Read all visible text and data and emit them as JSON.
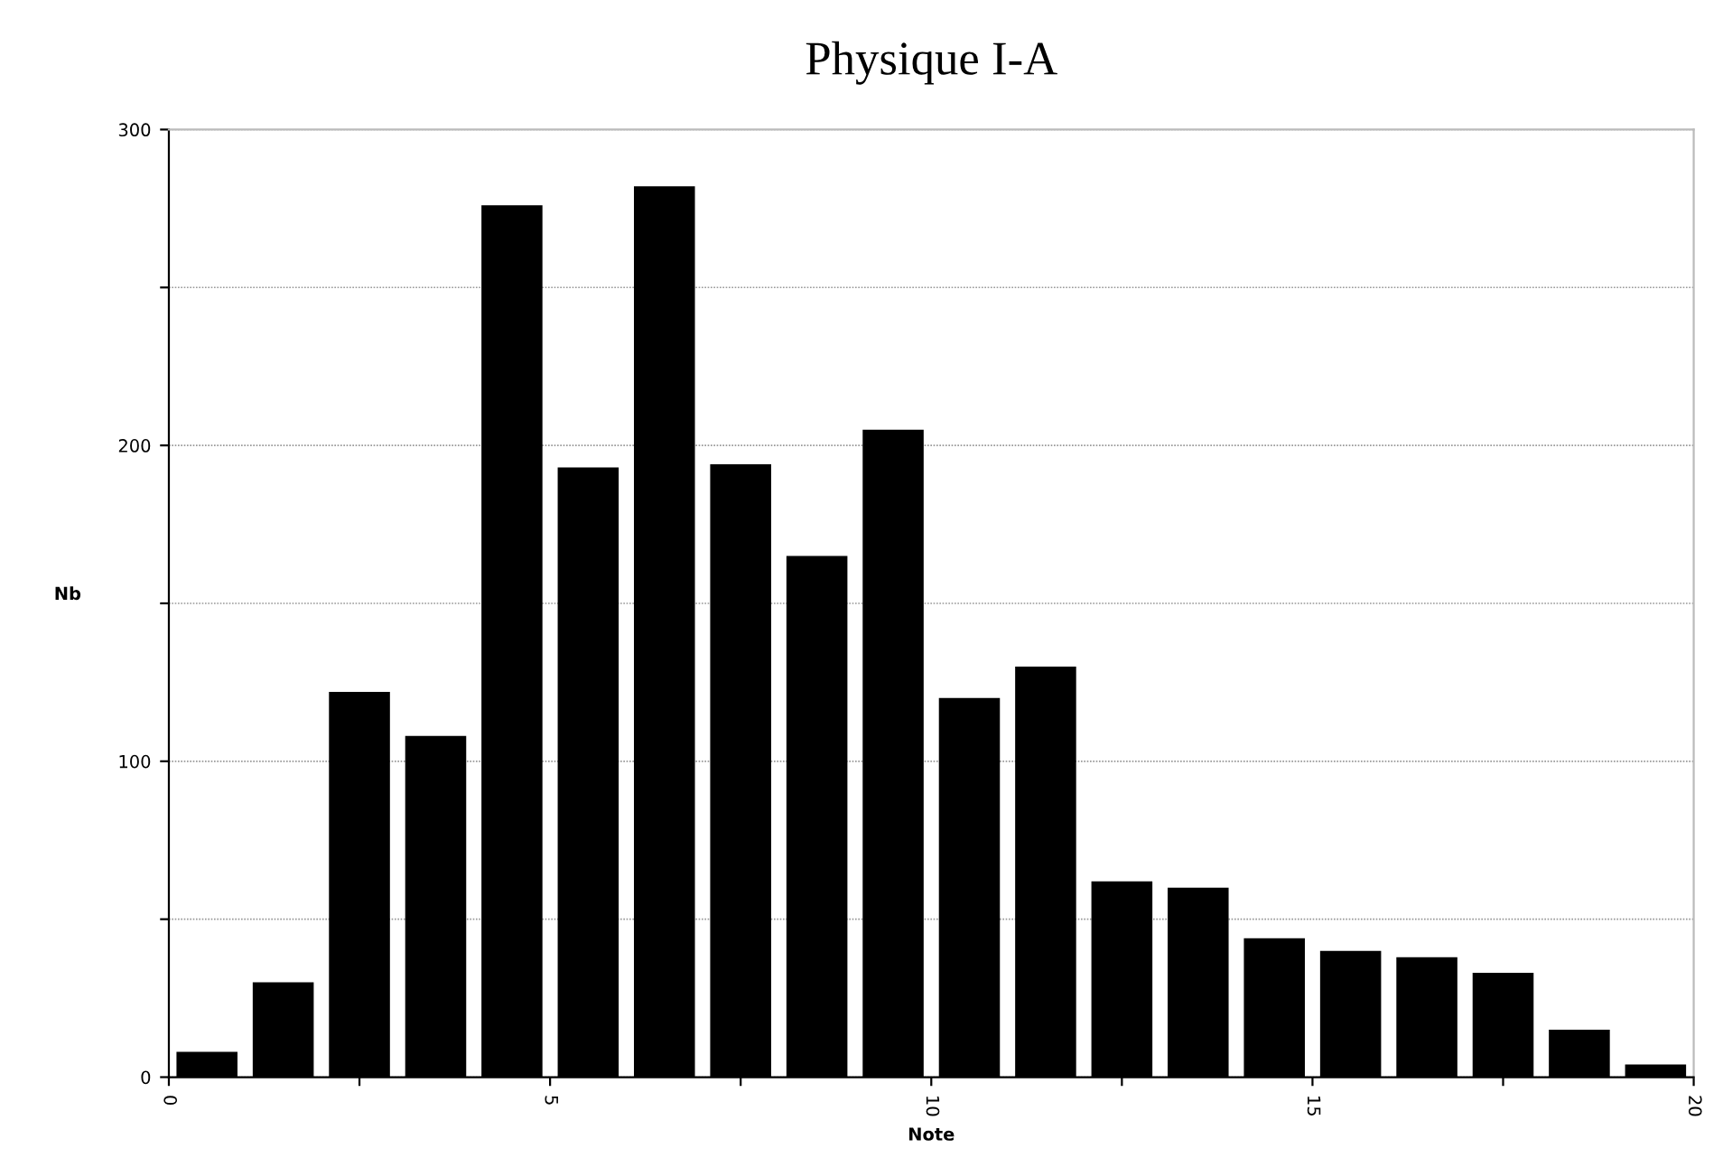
{
  "chart_data": {
    "type": "histogram",
    "title": "Physique I-A",
    "xlabel": "Note",
    "ylabel": "Nb",
    "bins": [
      0,
      1,
      2,
      3,
      4,
      5,
      6,
      7,
      8,
      9,
      10,
      11,
      12,
      13,
      14,
      15,
      16,
      17,
      18,
      19,
      20
    ],
    "values": [
      8,
      30,
      122,
      108,
      276,
      193,
      282,
      194,
      165,
      205,
      120,
      130,
      62,
      60,
      44,
      40,
      38,
      33,
      15,
      4
    ],
    "color": "#000000",
    "xlim": [
      0,
      20
    ],
    "ylim": [
      0,
      300
    ],
    "xticks": [
      0,
      {
        "value": 2.5,
        "label": null
      },
      5,
      {
        "value": 7.5,
        "label": null
      },
      10,
      {
        "value": 12.5,
        "label": null
      },
      15,
      {
        "value": 17.5,
        "label": null
      },
      20
    ],
    "yticks": [
      0,
      {
        "value": 50,
        "label": null
      },
      100,
      {
        "value": 150,
        "label": null
      },
      200,
      {
        "value": 250,
        "label": null
      },
      300
    ],
    "grid": "y"
  }
}
